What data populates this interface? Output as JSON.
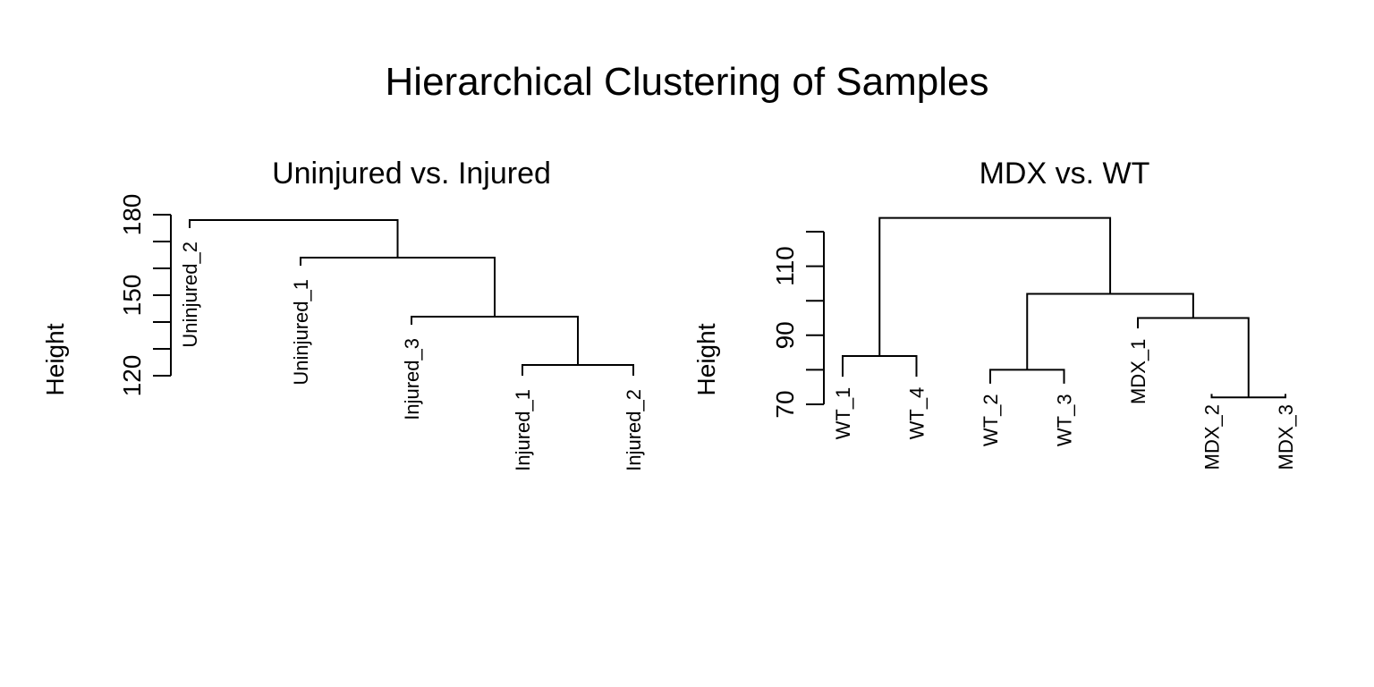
{
  "title": "Hierarchical Clustering of Samples",
  "chart_data": [
    {
      "type": "dendrogram",
      "title": "Uninjured vs. Injured",
      "ylabel": "Height",
      "ylim": [
        113,
        180
      ],
      "yticks": [
        120,
        130,
        140,
        150,
        160,
        170,
        180
      ],
      "ytick_labels": [
        "120",
        "150",
        "180"
      ],
      "labeled_ticks": [
        120,
        150,
        180
      ],
      "leaf_offset": 5,
      "leaves": [
        "Uninjured_2",
        "Uninjured_1",
        "Injured_3",
        "Injured_1",
        "Injured_2"
      ],
      "leaf_heights": [
        175,
        161,
        139,
        120,
        120
      ],
      "merges": [
        {
          "left": 4,
          "right": 5,
          "height": 124
        },
        {
          "left": 3,
          "right": "m1",
          "height": 142
        },
        {
          "left": 2,
          "right": "m2",
          "height": 164
        },
        {
          "left": 1,
          "right": "m3",
          "height": 178
        }
      ]
    },
    {
      "type": "dendrogram",
      "title": "MDX vs. WT",
      "ylabel": "Height",
      "ylim": [
        70,
        127
      ],
      "yticks": [
        70,
        80,
        90,
        100,
        110,
        120
      ],
      "ytick_labels": [
        "70",
        "90",
        "110"
      ],
      "labeled_ticks": [
        70,
        90,
        110
      ],
      "leaf_offset": 3,
      "leaves": [
        "WT_1",
        "WT_4",
        "WT_2",
        "WT_3",
        "MDX_1",
        "MDX_2",
        "MDX_3"
      ],
      "leaf_heights": [
        78,
        78,
        76,
        76,
        92,
        73,
        73
      ],
      "merges": [
        {
          "left": 1,
          "right": 2,
          "height": 84
        },
        {
          "left": 3,
          "right": 4,
          "height": 80
        },
        {
          "left": 6,
          "right": 7,
          "height": 72
        },
        {
          "left": 5,
          "right": "m3",
          "height": 95
        },
        {
          "left": "m2",
          "right": "m4",
          "height": 102
        },
        {
          "left": "m1",
          "right": "m5",
          "height": 124
        }
      ]
    }
  ]
}
